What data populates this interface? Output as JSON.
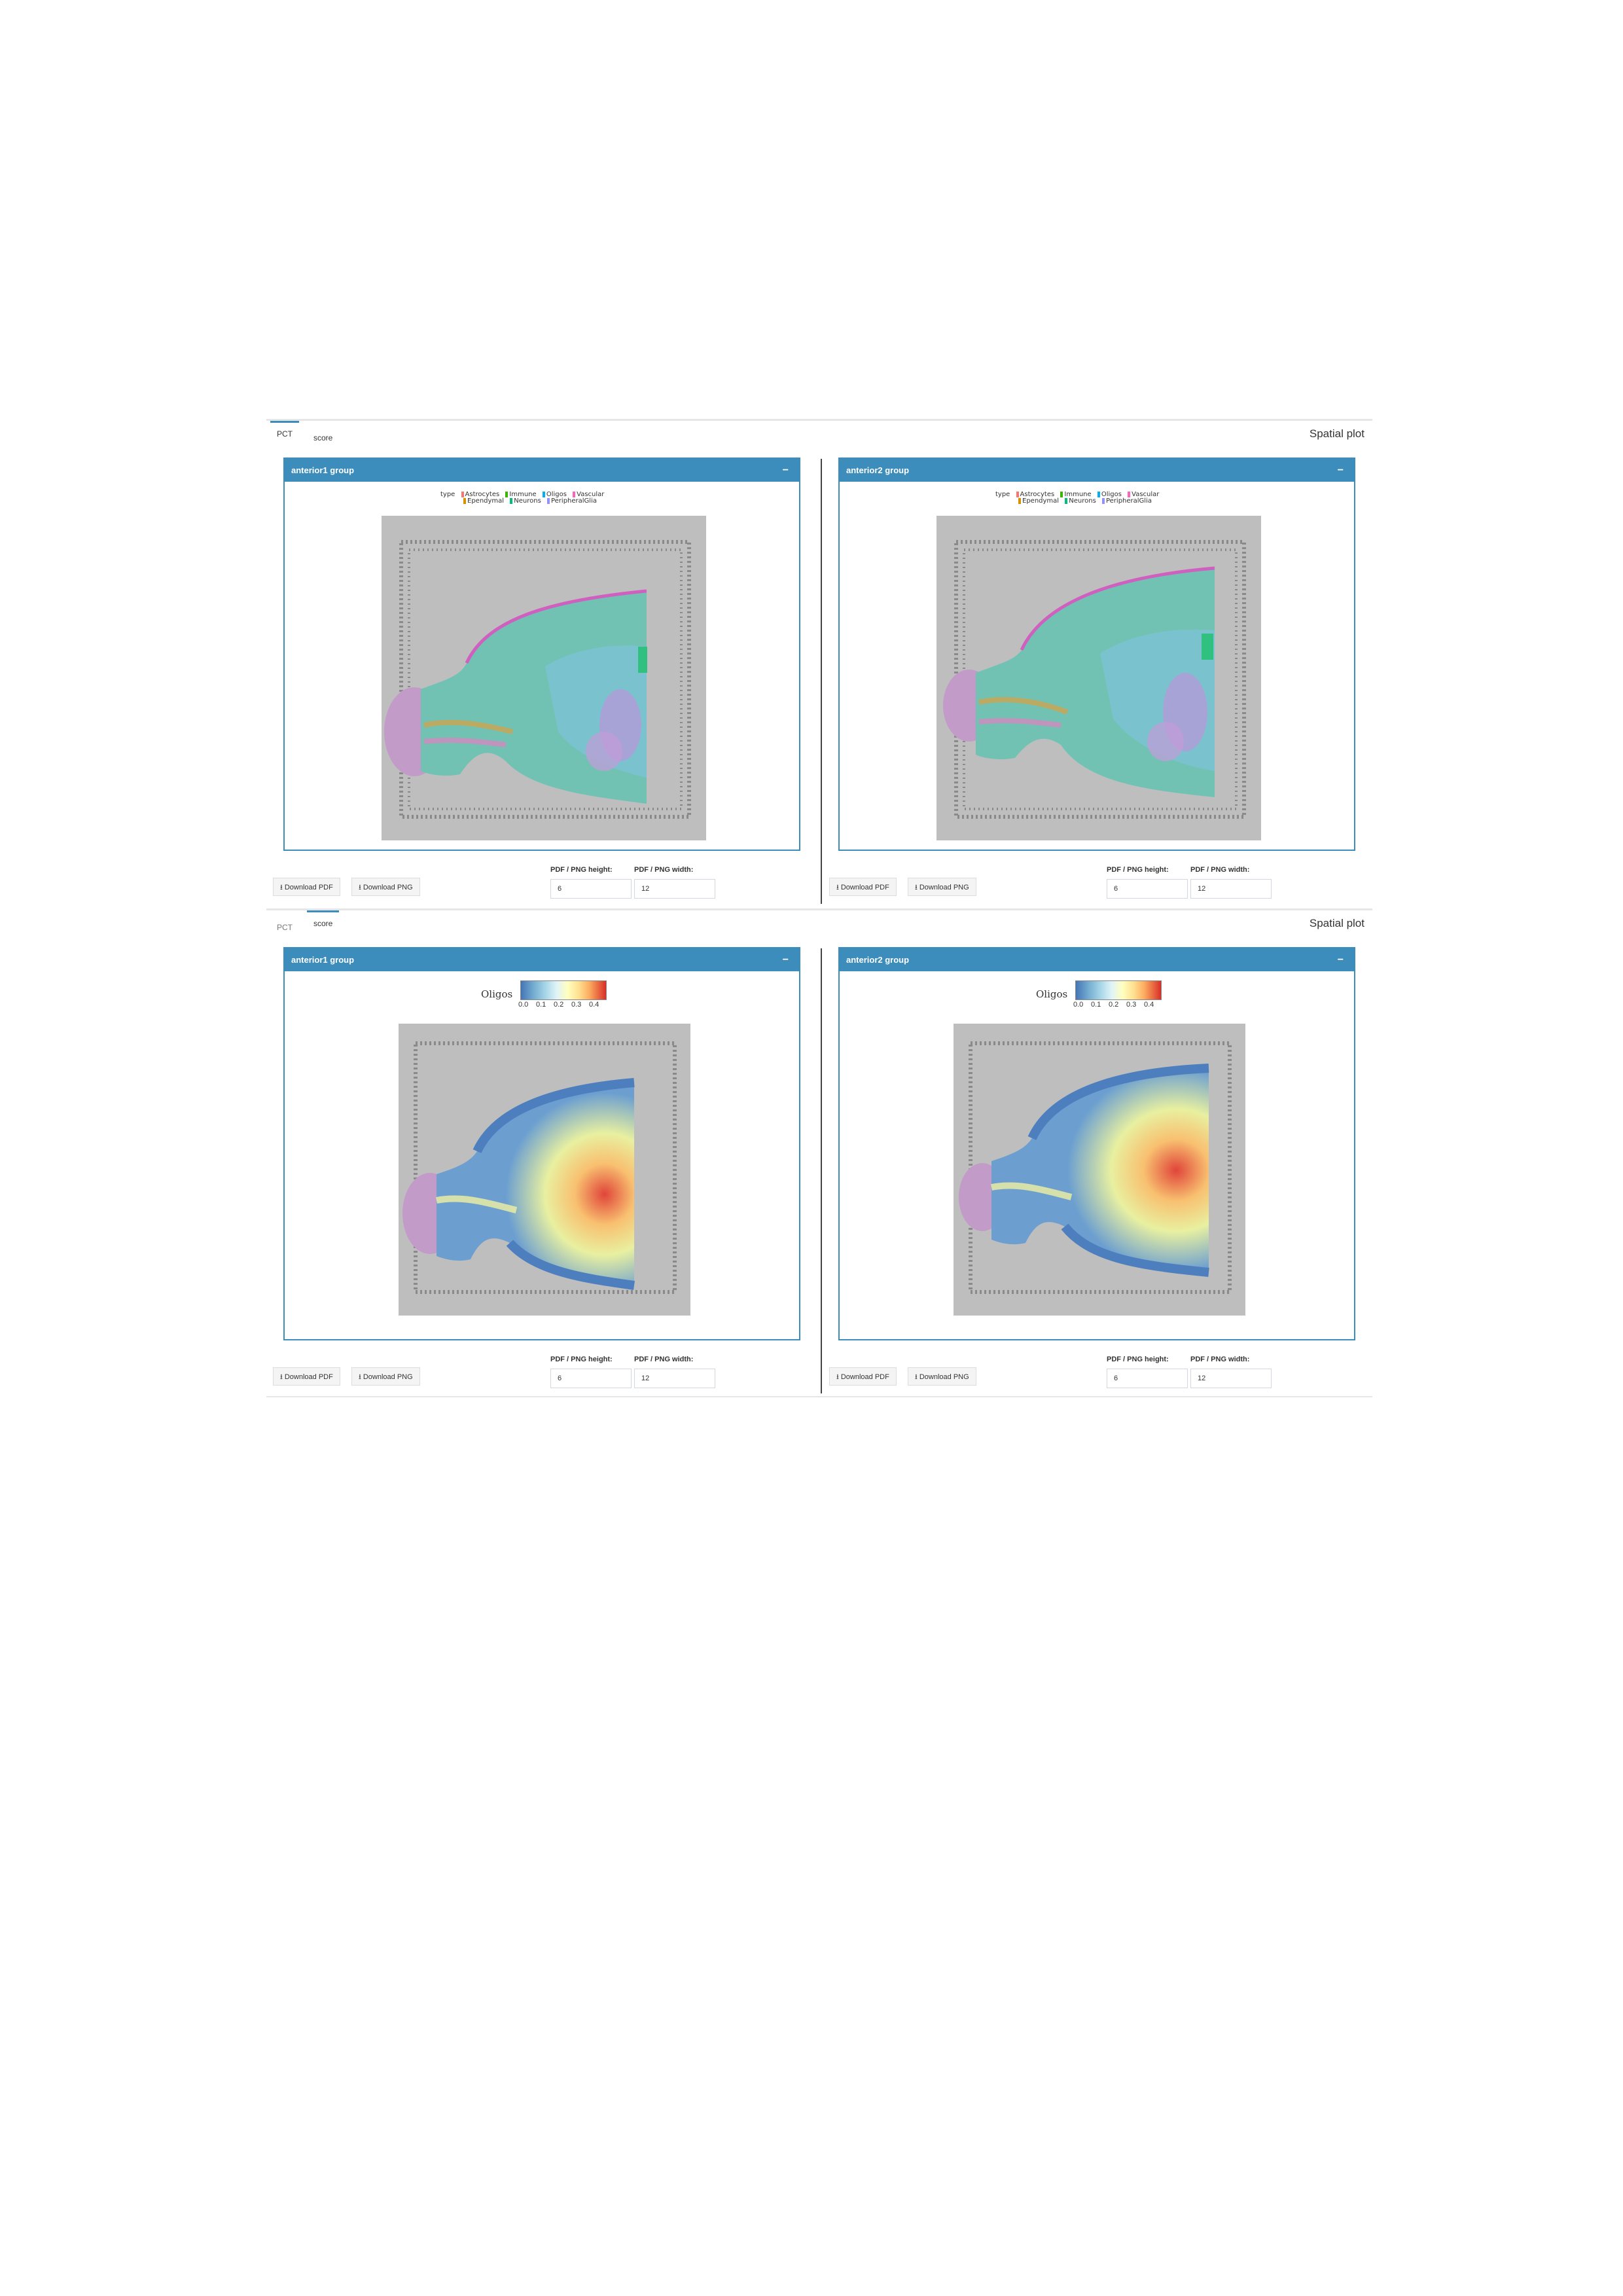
{
  "title": "Spatial plot",
  "tabs": [
    {
      "label": "PCT"
    },
    {
      "label": "score"
    }
  ],
  "panels": [
    {
      "header": "anterior1 group",
      "collapse": "−"
    },
    {
      "header": "anterior2 group",
      "collapse": "−"
    }
  ],
  "pct_legend": {
    "type_label": "type",
    "items": [
      {
        "label": "Astrocytes",
        "color": "#f8766d"
      },
      {
        "label": "Ependymal",
        "color": "#d89000"
      },
      {
        "label": "Immune",
        "color": "#39b600"
      },
      {
        "label": "Neurons",
        "color": "#00bf7d"
      },
      {
        "label": "Oligos",
        "color": "#00b0f6"
      },
      {
        "label": "PeripheralGlia",
        "color": "#9590ff"
      },
      {
        "label": "Vascular",
        "color": "#ff62bc"
      }
    ]
  },
  "score_legend": {
    "title": "Oligos",
    "ticks": [
      "0.0",
      "0.1",
      "0.2",
      "0.3",
      "0.4"
    ]
  },
  "controls": {
    "download_pdf": "Download PDF",
    "download_png": "Download PNG",
    "height_label": "PDF / PNG height:",
    "width_label": "PDF / PNG width:",
    "height_value": "6",
    "width_value": "12"
  }
}
